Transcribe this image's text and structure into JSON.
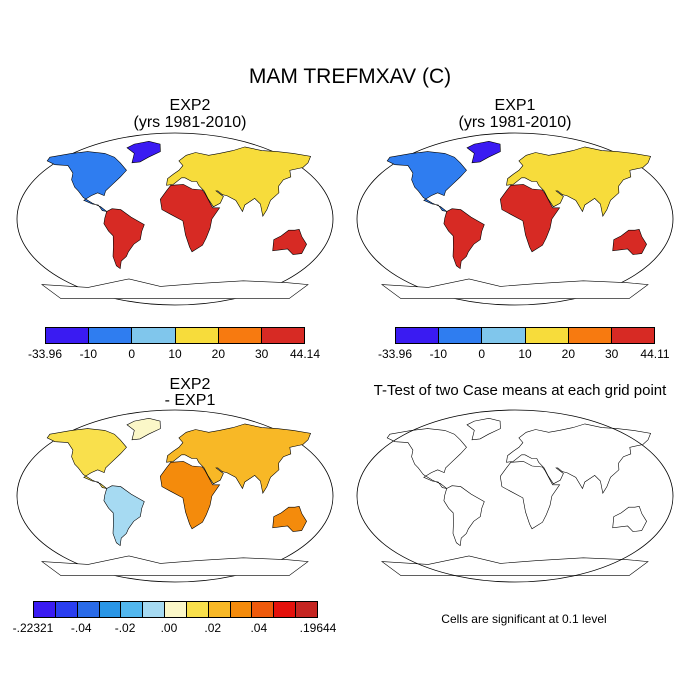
{
  "figure": {
    "title": "MAM TREFMXAV (C)"
  },
  "panels": [
    {
      "title_line1": "EXP2",
      "title_line2": "(yrs 1981-2010)",
      "colorbar": {
        "colors": [
          "#3a1bf2",
          "#2f7df0",
          "#80c6ec",
          "#f7dc3b",
          "#f77a10",
          "#d72a24"
        ],
        "labels": [
          "-33.96",
          "-10",
          "0",
          "10",
          "20",
          "30",
          "44.14"
        ]
      }
    },
    {
      "title_line1": "EXP1",
      "title_line2": "(yrs 1981-2010)",
      "colorbar": {
        "colors": [
          "#3a1bf2",
          "#2f7df0",
          "#80c6ec",
          "#f7dc3b",
          "#f77a10",
          "#d72a24"
        ],
        "labels": [
          "-33.96",
          "-10",
          "0",
          "10",
          "20",
          "30",
          "44.11"
        ]
      }
    },
    {
      "title_line1": "EXP2",
      "title_line2": "- EXP1",
      "colorbar": {
        "colors": [
          "#3a1bf2",
          "#2a3ef0",
          "#2a6be8",
          "#2a96e6",
          "#52b7ee",
          "#a6daf2",
          "#fbf7c8",
          "#f9e04c",
          "#f8b826",
          "#f48b0c",
          "#ef5a0c",
          "#e4110c",
          "#c52521"
        ],
        "labels": [
          ".22321",
          "-.04",
          "-.02",
          ".00",
          ".02",
          ".04",
          ".19644"
        ],
        "label_prefix_first": "-"
      }
    },
    {
      "title": "T-Test of two Case means at each grid point",
      "note": "Cells are significant at 0.1 level"
    }
  ]
}
